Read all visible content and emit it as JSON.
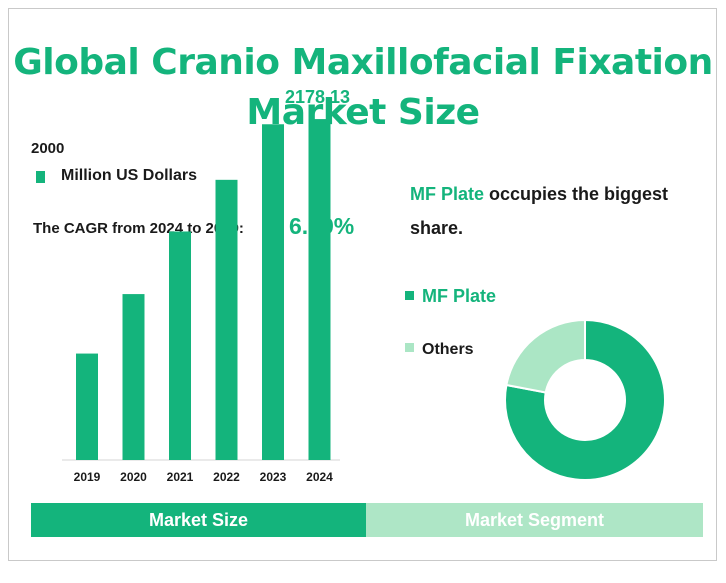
{
  "title_line1": "Global Cranio Maxillofacial Fixation",
  "title_line2": "Market Size",
  "legend_label": "Million US Dollars",
  "cagr_label": "The CAGR from 2024 to 2029:",
  "cagr_value": "6.89%",
  "share_statement": {
    "highlight": "MF Plate",
    "rest_line1": " occupies the biggest",
    "rest_line2": "share."
  },
  "tabs": {
    "left": "Market Size",
    "right": "Market Segment"
  },
  "colors": {
    "accent": "#14b47c",
    "light": "#abe6c5",
    "tab_light": "#aee6c6"
  },
  "chart_data": [
    {
      "type": "bar",
      "categories": [
        "2019",
        "2020",
        "2021",
        "2022",
        "2023",
        "2024"
      ],
      "series": [
        {
          "name": "Million US Dollars",
          "values": [
            680,
            1060,
            1460,
            1790,
            2145,
            2178.13
          ]
        }
      ],
      "value_labels": {
        "5": "2178.13"
      },
      "y_ticks": [
        {
          "value": 2000,
          "label": "2000"
        }
      ],
      "ylim": [
        0,
        2300
      ],
      "grid": false,
      "legend": "top-left"
    },
    {
      "type": "pie",
      "donut": true,
      "labels": [
        "MF Plate",
        "Others"
      ],
      "values": [
        78,
        22
      ],
      "colors": [
        "#14b47c",
        "#abe6c5"
      ],
      "legend": "left"
    }
  ]
}
